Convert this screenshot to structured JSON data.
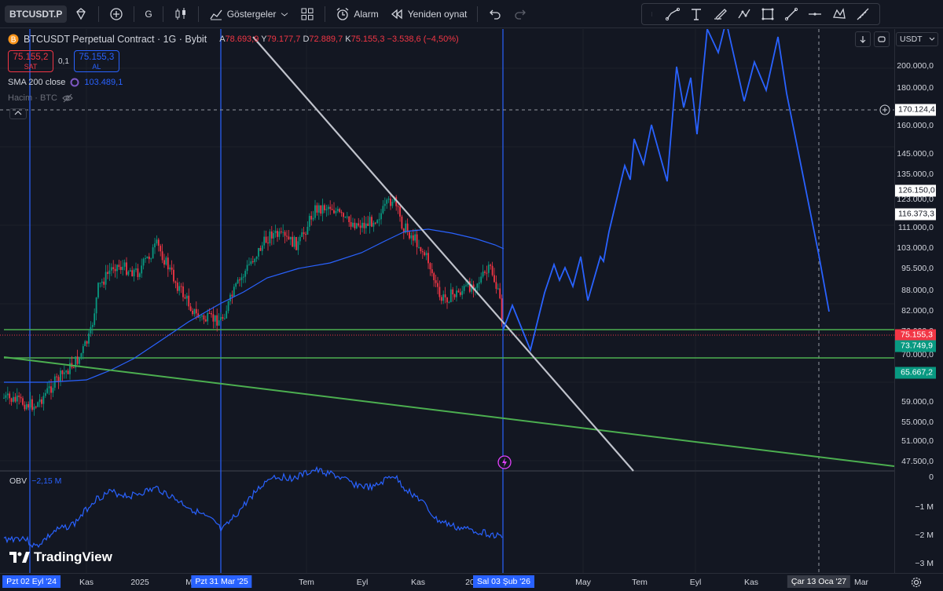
{
  "toolbar": {
    "symbol": "BTCUSDT.P",
    "interval": "G",
    "indicators_label": "Göstergeler",
    "alert_label": "Alarm",
    "replay_label": "Yeniden oynat"
  },
  "legend": {
    "title": "BTCUSDT Perpetual Contract · 1G · Bybit",
    "ohlc": [
      {
        "k": "A",
        "v": "78.693,9"
      },
      {
        "k": "Y",
        "v": "79.177,7"
      },
      {
        "k": "D",
        "v": "72.889,7"
      },
      {
        "k": "K",
        "v": "75.155,3"
      }
    ],
    "change": "−3.538,6 (−4,50%)",
    "sell_price": "75.155,2",
    "sell_label": "SAT",
    "spread": "0,1",
    "buy_price": "75.155,3",
    "buy_label": "AL",
    "sma_label": "SMA 200 close",
    "sma_value": "103.489,1",
    "volume_label": "Hacim · BTC"
  },
  "obv": {
    "label": "OBV",
    "value": "−2,15 M"
  },
  "brand": "TradingView",
  "currency": "USDT",
  "price_axis": {
    "ticks": [
      "200.000,0",
      "180.000,0",
      "160.000,0",
      "145.000,0",
      "135.000,0",
      "123.000,0",
      "111.000,0",
      "103.000,0",
      "95.500,0",
      "88.000,0",
      "82.000,0",
      "76.000,0",
      "70.000,0",
      "59.000,0",
      "55.000,0",
      "51.000,0",
      "47.500,0"
    ],
    "tags": {
      "crosshair": "170.124,4",
      "level_top": "126.150,0",
      "level_mid": "116.373,3",
      "last": "75.155,3",
      "support1": "73.749,9",
      "support2": "65.667,2"
    },
    "obv_ticks": [
      "0",
      "−1 M",
      "−2 M",
      "−3 M"
    ]
  },
  "time_axis": {
    "labels": [
      "Kas",
      "2025",
      "May",
      "Tem",
      "Eyl",
      "Kas",
      "20",
      "May",
      "Tem",
      "Eyl",
      "Kas",
      "Mar"
    ],
    "highlights": [
      "Pzt 02 Eyl '24",
      "Pzt 31 Mar '25",
      "Sal 03 Şub '26"
    ],
    "crosshair": "Çar 13 Oca '27"
  },
  "colors": {
    "background": "#131722",
    "up": "#089981",
    "down": "#f23645",
    "accent": "#2962ff",
    "support": "#4caf50",
    "trendline": "#d1d4dc"
  }
}
